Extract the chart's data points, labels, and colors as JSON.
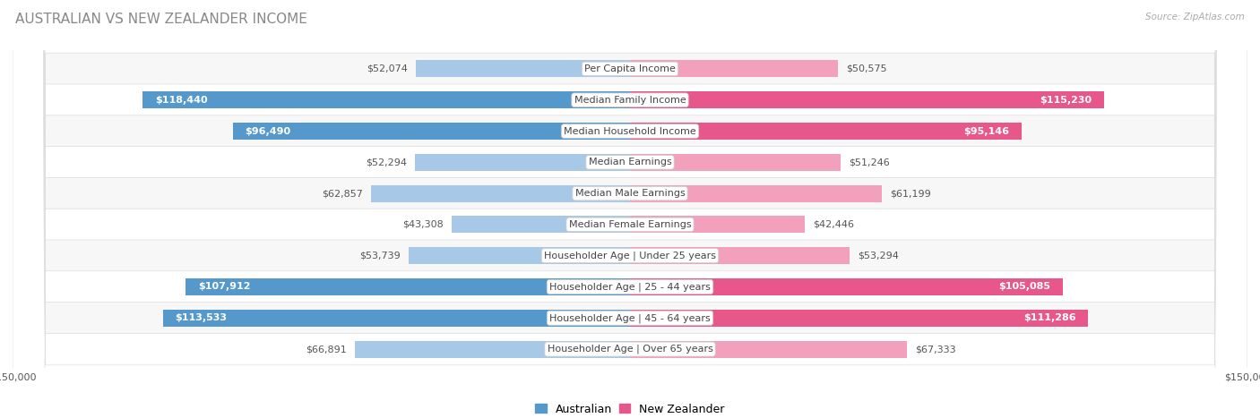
{
  "title": "AUSTRALIAN VS NEW ZEALANDER INCOME",
  "source": "Source: ZipAtlas.com",
  "categories": [
    "Per Capita Income",
    "Median Family Income",
    "Median Household Income",
    "Median Earnings",
    "Median Male Earnings",
    "Median Female Earnings",
    "Householder Age | Under 25 years",
    "Householder Age | 25 - 44 years",
    "Householder Age | 45 - 64 years",
    "Householder Age | Over 65 years"
  ],
  "australian_values": [
    52074,
    118440,
    96490,
    52294,
    62857,
    43308,
    53739,
    107912,
    113533,
    66891
  ],
  "nz_values": [
    50575,
    115230,
    95146,
    51246,
    61199,
    42446,
    53294,
    105085,
    111286,
    67333
  ],
  "max_value": 150000,
  "australian_color_light": "#a8c8e8",
  "australian_color_dark": "#5599cc",
  "nz_color_light": "#f2a0bc",
  "nz_color_dark": "#e8578a",
  "threshold": 90000,
  "bar_height": 0.55,
  "background_color": "#ffffff",
  "row_color_odd": "#f7f7f7",
  "row_color_even": "#ffffff",
  "title_fontsize": 11,
  "label_fontsize": 8,
  "value_fontsize": 8,
  "tick_fontsize": 8,
  "legend_fontsize": 9
}
